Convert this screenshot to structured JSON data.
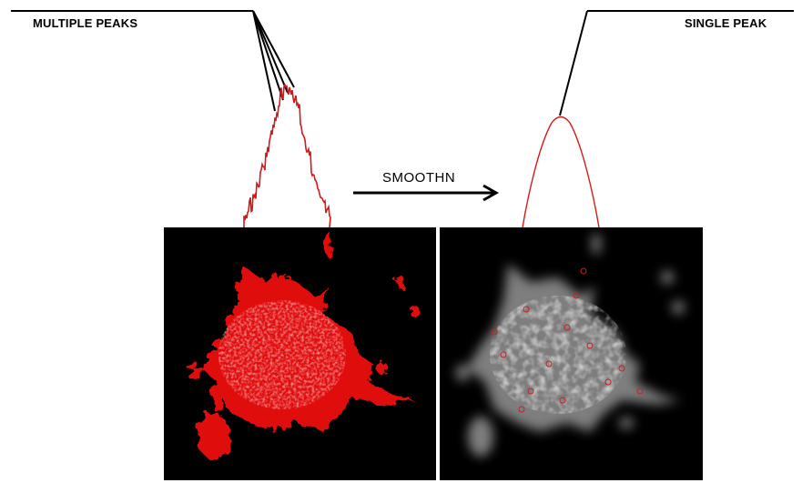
{
  "labels": {
    "left": "MULTIPLE PEAKS",
    "right": "SINGLE PEAK",
    "arrow": "SMOOTHN"
  },
  "colors": {
    "peak_curve": "#d61818",
    "leader_line": "#000000",
    "panel_bg": "#000000",
    "cell_red": "#e01010",
    "cell_gray": "#8a8a8a"
  },
  "panels": {
    "left": "raw cell image with red overlay",
    "right": "smoothed cell image grayscale"
  }
}
